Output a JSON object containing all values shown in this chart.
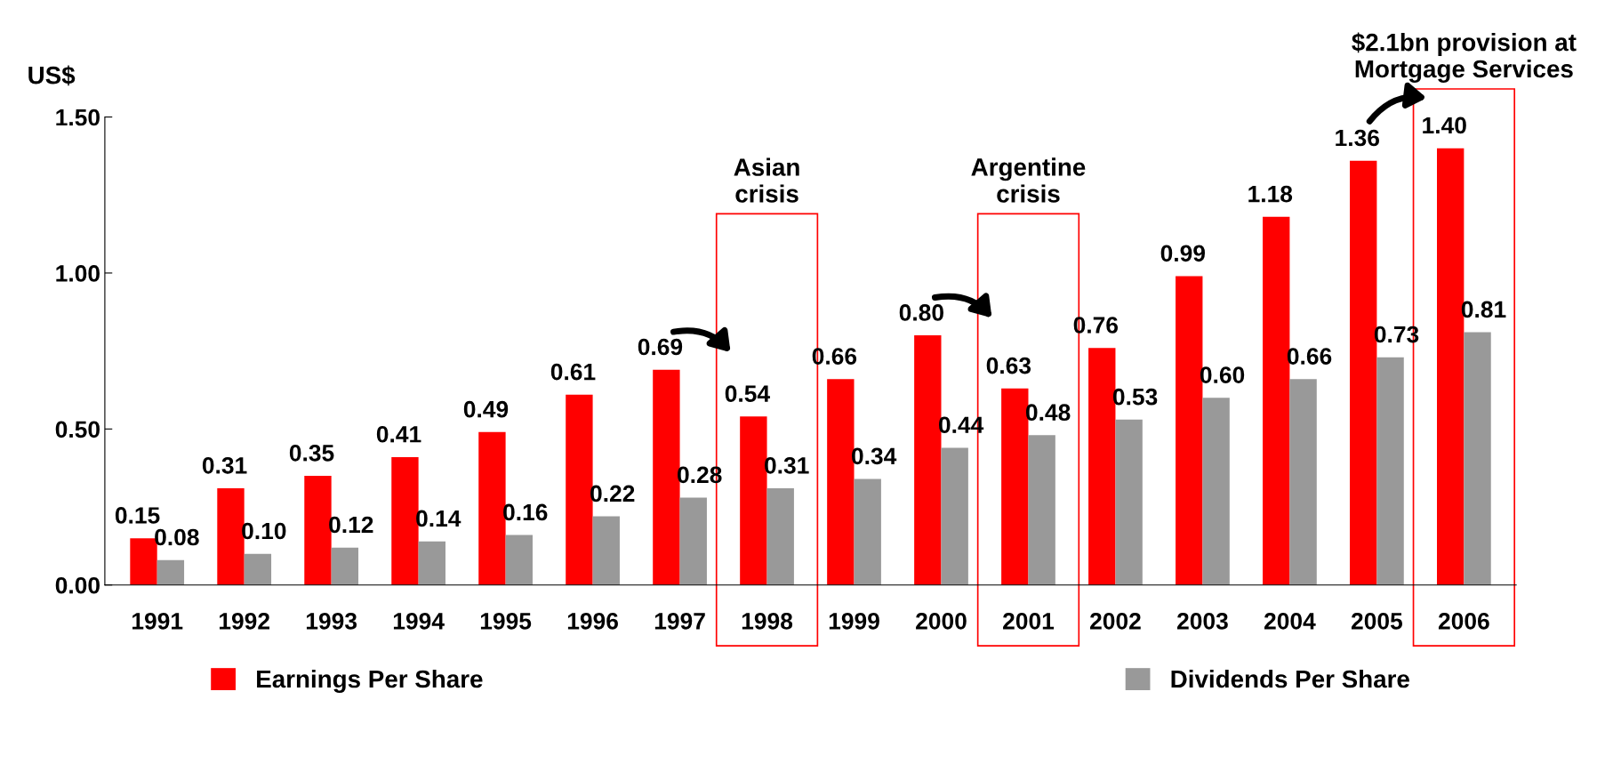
{
  "chart_data": {
    "type": "bar",
    "ylabel": "US$",
    "categories": [
      "1991",
      "1992",
      "1993",
      "1994",
      "1995",
      "1996",
      "1997",
      "1998",
      "1999",
      "2000",
      "2001",
      "2002",
      "2003",
      "2004",
      "2005",
      "2006"
    ],
    "series": [
      {
        "name": "Earnings Per Share",
        "color": "#ff0000",
        "values": [
          0.15,
          0.31,
          0.35,
          0.41,
          0.49,
          0.61,
          0.69,
          0.54,
          0.66,
          0.8,
          0.63,
          0.76,
          0.99,
          1.18,
          1.36,
          1.4
        ],
        "value_labels": [
          "0.15",
          "0.31",
          "0.35",
          "0.41",
          "0.49",
          "0.61",
          "0.69",
          "0.54",
          "0.66",
          "0.80",
          "0.63",
          "0.76",
          "0.99",
          "1.18",
          "1.36",
          "1.40"
        ]
      },
      {
        "name": "Dividends Per Share",
        "color": "#999999",
        "values": [
          0.08,
          0.1,
          0.12,
          0.14,
          0.16,
          0.22,
          0.28,
          0.31,
          0.34,
          0.44,
          0.48,
          0.53,
          0.6,
          0.66,
          0.73,
          0.81
        ],
        "value_labels": [
          "0.08",
          "0.10",
          "0.12",
          "0.14",
          "0.16",
          "0.22",
          "0.28",
          "0.31",
          "0.34",
          "0.44",
          "0.48",
          "0.53",
          "0.60",
          "0.66",
          "0.73",
          "0.81"
        ]
      }
    ],
    "ylim": [
      0,
      1.5
    ],
    "yticks": [
      {
        "value": 0,
        "label": "0.00"
      },
      {
        "value": 0.5,
        "label": "0.50"
      },
      {
        "value": 1.0,
        "label": "1.00"
      },
      {
        "value": 1.5,
        "label": "1.50"
      }
    ],
    "grid": false,
    "legend": "bottom",
    "annotations": [
      "Asian\ncrisis",
      "Argentine\ncrisis",
      "$2.1bn provision at\nMortgage Services"
    ]
  }
}
